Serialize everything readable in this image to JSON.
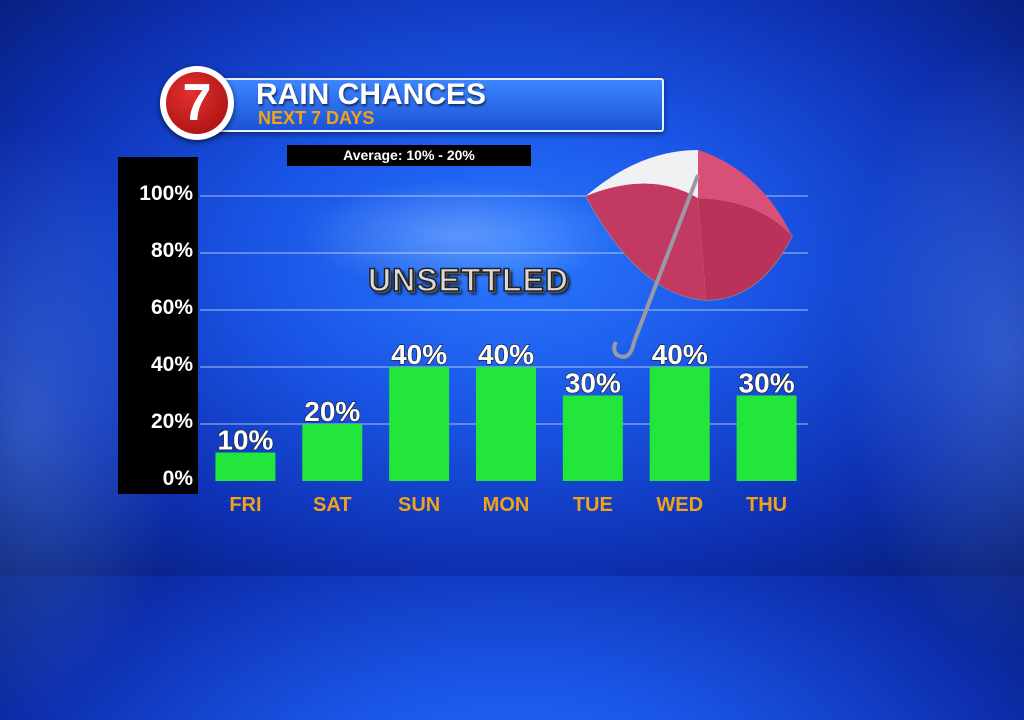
{
  "header": {
    "logo_text": "7",
    "title": "RAIN CHANCES",
    "subtitle": "NEXT 7 DAYS",
    "average_text": "Average: 10% - 20%"
  },
  "annotation": "UNSETTLED",
  "colors": {
    "bar": "#22e63a",
    "category_label": "#f0a21a",
    "title_bar": "#2a6cf0",
    "logo_red": "#c81e1e"
  },
  "chart_data": {
    "type": "bar",
    "categories": [
      "FRI",
      "SAT",
      "SUN",
      "MON",
      "TUE",
      "WED",
      "THU"
    ],
    "values": [
      10,
      20,
      40,
      40,
      30,
      40,
      30
    ],
    "value_labels": [
      "10%",
      "20%",
      "40%",
      "40%",
      "30%",
      "40%",
      "30%"
    ],
    "yticks": [
      "0%",
      "20%",
      "40%",
      "60%",
      "80%",
      "100%"
    ],
    "ylim": [
      0,
      100
    ],
    "grid": true
  }
}
